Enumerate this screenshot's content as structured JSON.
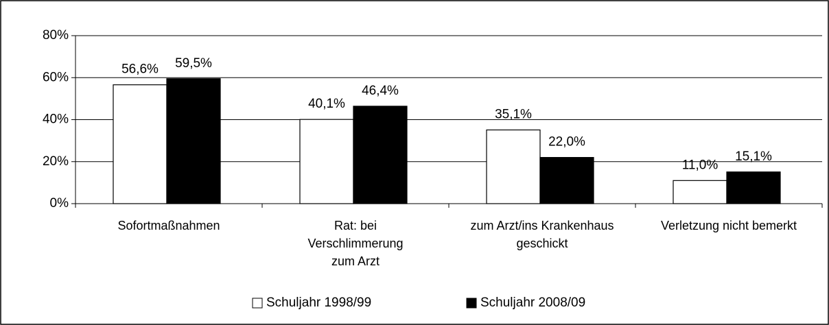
{
  "chart_data": {
    "type": "bar",
    "categories": [
      "Sofortmaßnahmen",
      "Rat: bei Verschlimmerung zum Arzt",
      "zum Arzt/ins Krankenhaus geschickt",
      "Verletzung nicht bemerkt"
    ],
    "series": [
      {
        "name": "Schuljahr 1998/99",
        "color": "#ffffff",
        "values": [
          56.6,
          40.1,
          35.1,
          11.0
        ],
        "value_labels": [
          "56,6%",
          "40,1%",
          "35,1%",
          "11,0%"
        ]
      },
      {
        "name": "Schuljahr 2008/09",
        "color": "#000000",
        "values": [
          59.5,
          46.4,
          22.0,
          15.1
        ],
        "value_labels": [
          "59,5%",
          "46,4%",
          "22,0%",
          "15,1%"
        ]
      }
    ],
    "ylim": [
      0,
      80
    ],
    "yticks": [
      {
        "value": 0,
        "label": "0%"
      },
      {
        "value": 20,
        "label": "20%"
      },
      {
        "value": 40,
        "label": "40%"
      },
      {
        "value": 60,
        "label": "60%"
      },
      {
        "value": 80,
        "label": "80%"
      }
    ],
    "grid": true,
    "legend": "bottom"
  }
}
